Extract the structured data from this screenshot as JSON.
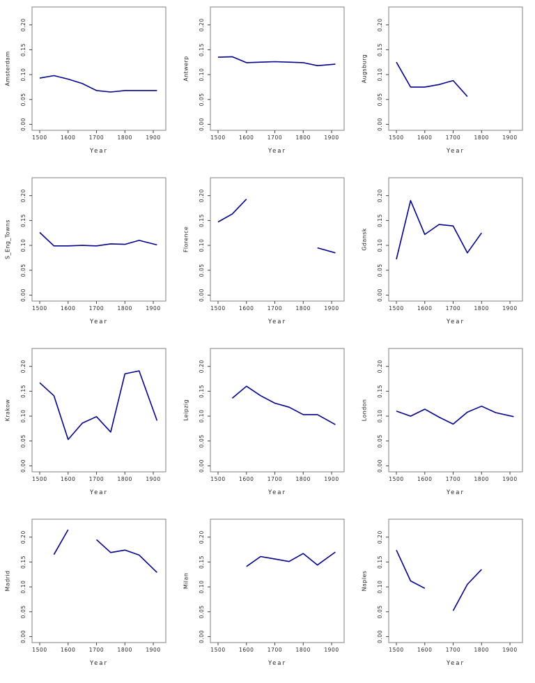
{
  "page": {
    "background": "#ffffff"
  },
  "chart_data": {
    "type": "line",
    "layout": {
      "rows": 4,
      "cols": 3,
      "grid": false,
      "legend": "none"
    },
    "xlabel": "Year",
    "x_ticks": [
      {
        "value": 1500,
        "label": "1500"
      },
      {
        "value": 1600,
        "label": "1600"
      },
      {
        "value": 1700,
        "label": "1700"
      },
      {
        "value": 1800,
        "label": "1800"
      },
      {
        "value": 1900,
        "label": "1900"
      }
    ],
    "y_ticks": [
      {
        "value": 0.0,
        "label": "0.00"
      },
      {
        "value": 0.05,
        "label": "0.05"
      },
      {
        "value": 0.1,
        "label": "0.10"
      },
      {
        "value": 0.15,
        "label": "0.15"
      },
      {
        "value": 0.2,
        "label": "0.20"
      }
    ],
    "xlim": [
      1473,
      1944
    ],
    "ylim": [
      -0.012,
      0.236
    ],
    "line_color": "#00008B",
    "box_color": "#808080",
    "tick_color": "#404040",
    "panels": [
      {
        "label": "Amsterdam",
        "segments": [
          [
            [
              1500,
              0.093
            ],
            [
              1550,
              0.098
            ],
            [
              1600,
              0.091
            ],
            [
              1650,
              0.082
            ],
            [
              1700,
              0.068
            ],
            [
              1750,
              0.065
            ],
            [
              1800,
              0.068
            ],
            [
              1850,
              0.068
            ],
            [
              1913,
              0.068
            ]
          ]
        ]
      },
      {
        "label": "Antwerp",
        "segments": [
          [
            [
              1500,
              0.135
            ],
            [
              1550,
              0.136
            ],
            [
              1600,
              0.124
            ],
            [
              1650,
              0.125
            ],
            [
              1700,
              0.126
            ],
            [
              1750,
              0.125
            ],
            [
              1800,
              0.124
            ],
            [
              1850,
              0.118
            ],
            [
              1913,
              0.121
            ]
          ]
        ]
      },
      {
        "label": "Augsburg",
        "segments": [
          [
            [
              1500,
              0.125
            ],
            [
              1550,
              0.075
            ],
            [
              1600,
              0.075
            ],
            [
              1650,
              0.08
            ],
            [
              1700,
              0.088
            ],
            [
              1750,
              0.056
            ]
          ]
        ]
      },
      {
        "label": "S_Eng_Towns",
        "segments": [
          [
            [
              1500,
              0.126
            ],
            [
              1550,
              0.099
            ],
            [
              1600,
              0.099
            ],
            [
              1650,
              0.1
            ],
            [
              1700,
              0.099
            ],
            [
              1750,
              0.103
            ],
            [
              1800,
              0.102
            ],
            [
              1850,
              0.11
            ],
            [
              1913,
              0.101
            ]
          ]
        ]
      },
      {
        "label": "Florence",
        "segments": [
          [
            [
              1500,
              0.147
            ],
            [
              1550,
              0.163
            ],
            [
              1600,
              0.193
            ]
          ],
          [
            [
              1850,
              0.095
            ],
            [
              1913,
              0.085
            ]
          ]
        ]
      },
      {
        "label": "Gdansk",
        "segments": [
          [
            [
              1500,
              0.072
            ],
            [
              1550,
              0.19
            ],
            [
              1600,
              0.122
            ],
            [
              1650,
              0.142
            ],
            [
              1700,
              0.139
            ],
            [
              1750,
              0.085
            ],
            [
              1800,
              0.125
            ]
          ]
        ]
      },
      {
        "label": "Krakow",
        "segments": [
          [
            [
              1500,
              0.167
            ],
            [
              1550,
              0.141
            ],
            [
              1600,
              0.053
            ],
            [
              1650,
              0.086
            ],
            [
              1700,
              0.099
            ],
            [
              1750,
              0.068
            ],
            [
              1800,
              0.185
            ],
            [
              1850,
              0.191
            ],
            [
              1913,
              0.091
            ]
          ]
        ]
      },
      {
        "label": "Leipzig",
        "segments": [
          [
            [
              1550,
              0.136
            ],
            [
              1600,
              0.16
            ],
            [
              1650,
              0.141
            ],
            [
              1700,
              0.126
            ],
            [
              1750,
              0.118
            ],
            [
              1800,
              0.103
            ],
            [
              1850,
              0.103
            ],
            [
              1913,
              0.083
            ]
          ]
        ]
      },
      {
        "label": "London",
        "segments": [
          [
            [
              1500,
              0.11
            ],
            [
              1550,
              0.1
            ],
            [
              1600,
              0.114
            ],
            [
              1650,
              0.098
            ],
            [
              1700,
              0.084
            ],
            [
              1750,
              0.108
            ],
            [
              1800,
              0.12
            ],
            [
              1850,
              0.107
            ],
            [
              1913,
              0.099
            ]
          ]
        ]
      },
      {
        "label": "Madrid",
        "segments": [
          [
            [
              1550,
              0.165
            ],
            [
              1600,
              0.215
            ]
          ],
          [
            [
              1700,
              0.195
            ],
            [
              1750,
              0.169
            ],
            [
              1800,
              0.174
            ],
            [
              1850,
              0.164
            ],
            [
              1913,
              0.129
            ]
          ]
        ]
      },
      {
        "label": "Milan",
        "segments": [
          [
            [
              1600,
              0.141
            ],
            [
              1650,
              0.161
            ],
            [
              1700,
              0.156
            ],
            [
              1750,
              0.151
            ],
            [
              1800,
              0.167
            ],
            [
              1850,
              0.144
            ],
            [
              1913,
              0.17
            ]
          ]
        ]
      },
      {
        "label": "Naples",
        "segments": [
          [
            [
              1500,
              0.174
            ],
            [
              1550,
              0.112
            ],
            [
              1600,
              0.097
            ]
          ],
          [
            [
              1700,
              0.052
            ],
            [
              1750,
              0.105
            ],
            [
              1800,
              0.135
            ]
          ]
        ]
      }
    ]
  }
}
